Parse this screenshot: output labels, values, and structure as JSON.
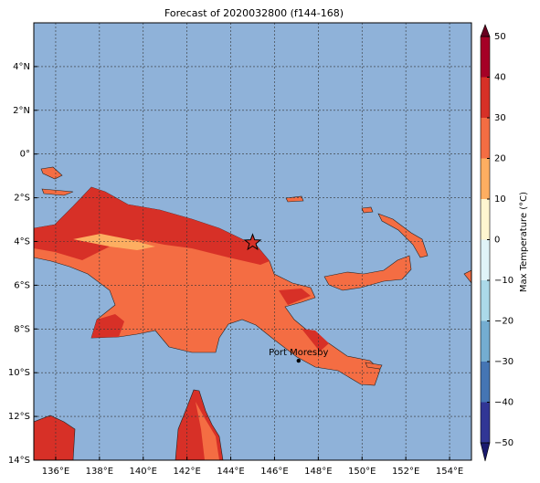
{
  "title": "Forecast of 2020032800 (f144-168)",
  "map": {
    "xlim": [
      135,
      155
    ],
    "ylim": [
      -14,
      6
    ],
    "grid": true,
    "ocean_color": "#8fb2d9",
    "xticks": [
      {
        "value": 136,
        "label": "136°E"
      },
      {
        "value": 138,
        "label": "138°E"
      },
      {
        "value": 140,
        "label": "140°E"
      },
      {
        "value": 142,
        "label": "142°E"
      },
      {
        "value": 144,
        "label": "144°E"
      },
      {
        "value": 146,
        "label": "146°E"
      },
      {
        "value": 148,
        "label": "148°E"
      },
      {
        "value": 150,
        "label": "150°E"
      },
      {
        "value": 152,
        "label": "152°E"
      },
      {
        "value": 154,
        "label": "154°E"
      }
    ],
    "yticks": [
      {
        "value": -14,
        "label": "14°S"
      },
      {
        "value": -12,
        "label": "12°S"
      },
      {
        "value": -10,
        "label": "10°S"
      },
      {
        "value": -8,
        "label": "8°S"
      },
      {
        "value": -6,
        "label": "6°S"
      },
      {
        "value": -4,
        "label": "4°S"
      },
      {
        "value": -2,
        "label": "2°S"
      },
      {
        "value": 0,
        "label": "0°"
      },
      {
        "value": 2,
        "label": "2°N"
      },
      {
        "value": 4,
        "label": "4°N"
      }
    ],
    "star": {
      "lon": 145,
      "lat": -4.05
    },
    "place": {
      "name": "Port Moresby",
      "lon": 147.1,
      "lat": -9.45
    }
  },
  "colorbar": {
    "label": "Max Temperature (°C)",
    "lim": [
      -50,
      50
    ],
    "ticks": [
      {
        "value": -50,
        "label": "−50"
      },
      {
        "value": -40,
        "label": "−40"
      },
      {
        "value": -30,
        "label": "−30"
      },
      {
        "value": -20,
        "label": "−20"
      },
      {
        "value": -10,
        "label": "−10"
      },
      0,
      10,
      20,
      30,
      40,
      50
    ],
    "colors": [
      "#313695",
      "#4575b4",
      "#74add1",
      "#abd9e9",
      "#e0f3f8",
      "#fef6d0",
      "#fdae61",
      "#f46d43",
      "#d73027",
      "#a50026"
    ],
    "under_color": "#1a1a6e",
    "over_color": "#67001f"
  }
}
